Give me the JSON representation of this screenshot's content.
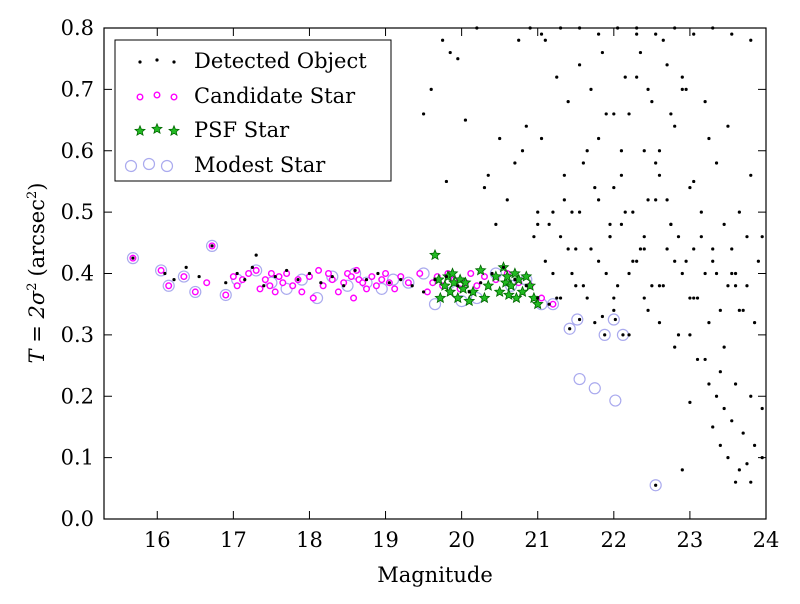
{
  "chart_data": {
    "type": "scatter",
    "title": "",
    "xlabel": "Magnitude",
    "ylabel_main": "T = 2σ",
    "ylabel_sup1": "2",
    "ylabel_paren": "(arcsec",
    "ylabel_sup2": "2",
    "ylabel_close": ")",
    "xlim": [
      15.3,
      24
    ],
    "ylim": [
      0,
      0.8
    ],
    "xticks": [
      16,
      17,
      18,
      19,
      20,
      21,
      22,
      23,
      24
    ],
    "xtick_labels": [
      "16",
      "17",
      "18",
      "19",
      "20",
      "21",
      "22",
      "23",
      "24"
    ],
    "yticks": [
      0,
      0.1,
      0.2,
      0.3,
      0.4,
      0.5,
      0.6,
      0.7,
      0.8
    ],
    "ytick_labels": [
      "0.0",
      "0.1",
      "0.2",
      "0.3",
      "0.4",
      "0.5",
      "0.6",
      "0.7",
      "0.8"
    ],
    "grid": false,
    "legend_position": "top-left",
    "legend": [
      {
        "label": "Detected Object",
        "marker": "dot",
        "color": "#000000"
      },
      {
        "label": "Candidate Star",
        "marker": "circle",
        "color": "#ff00ff"
      },
      {
        "label": "PSF Star",
        "marker": "star",
        "color": "#00cc00"
      },
      {
        "label": "Modest Star",
        "marker": "open-circle",
        "color": "#9999ee"
      }
    ],
    "series": [
      {
        "name": "Detected Object",
        "x": [
          15.68,
          16.72,
          17.3,
          16.1,
          16.22,
          16.38,
          16.55,
          16.9,
          17.05,
          17.15,
          17.25,
          17.4,
          17.55,
          17.7,
          17.85,
          18.0,
          18.15,
          18.3,
          18.45,
          18.6,
          18.75,
          18.9,
          19.05,
          19.2,
          19.35,
          19.5,
          19.65,
          19.8,
          19.95,
          20.1,
          20.25,
          20.4,
          20.55,
          20.7,
          20.85,
          21.0,
          21.15,
          21.3,
          21.42,
          21.55,
          21.75,
          21.88,
          22.02,
          22.12,
          22.55,
          19.5,
          19.6,
          19.75,
          19.85,
          19.95,
          20.35,
          20.5,
          20.7,
          20.85,
          21.0,
          21.1,
          21.25,
          21.4,
          21.55,
          21.7,
          21.85,
          22.0,
          22.15,
          22.3,
          22.45,
          22.6,
          22.75,
          22.9,
          23.05,
          23.2,
          23.35,
          23.5,
          23.65,
          23.8,
          23.95,
          19.8,
          20.05,
          20.3,
          20.45,
          20.6,
          20.8,
          20.95,
          21.05,
          21.2,
          21.35,
          21.5,
          21.65,
          21.8,
          21.95,
          22.1,
          22.25,
          22.4,
          22.55,
          22.7,
          22.85,
          23.0,
          23.15,
          23.3,
          23.45,
          23.6,
          23.75,
          23.9,
          21.1,
          21.3,
          21.5,
          21.7,
          21.9,
          22.1,
          22.3,
          22.5,
          22.7,
          22.9,
          23.1,
          23.3,
          23.5,
          23.7,
          21.2,
          21.4,
          21.6,
          21.8,
          22.0,
          22.2,
          22.4,
          22.6,
          22.8,
          23.0,
          23.2,
          23.4,
          23.6,
          23.85,
          21.25,
          21.45,
          21.65,
          21.85,
          22.05,
          22.25,
          22.45,
          22.65,
          22.85,
          23.05,
          23.25,
          23.45,
          23.65,
          21.15,
          21.35,
          21.55,
          21.75,
          21.95,
          22.15,
          22.35,
          22.55,
          22.75,
          22.95,
          23.15,
          23.35,
          23.55,
          23.75,
          22.0,
          22.2,
          22.4,
          22.6,
          22.8,
          23.0,
          23.2,
          23.4,
          23.6,
          23.8,
          23.95,
          23.1,
          23.25,
          23.35,
          23.45,
          23.55,
          23.7,
          23.85,
          23.0,
          23.3,
          23.5,
          23.65,
          23.8,
          23.95,
          22.9,
          23.4,
          23.6,
          23.75,
          21.6,
          21.8,
          22.0,
          22.2,
          22.4,
          22.6,
          22.8,
          22.3,
          22.5,
          22.7,
          22.1,
          22.9,
          21.9,
          22.35,
          22.65,
          22.95,
          23.25,
          21.0,
          21.45,
          21.95,
          22.45,
          22.75,
          23.05,
          23.55,
          20.2,
          20.75,
          20.9,
          21.05,
          21.3,
          21.55,
          21.8,
          22.05,
          22.3,
          22.55,
          22.8,
          23.05,
          23.3,
          23.55,
          23.8
        ],
        "y": [
          0.425,
          0.445,
          0.43,
          0.4,
          0.39,
          0.41,
          0.395,
          0.385,
          0.4,
          0.39,
          0.41,
          0.38,
          0.395,
          0.405,
          0.39,
          0.4,
          0.385,
          0.395,
          0.38,
          0.405,
          0.39,
          0.4,
          0.385,
          0.39,
          0.38,
          0.37,
          0.39,
          0.395,
          0.38,
          0.37,
          0.385,
          0.4,
          0.41,
          0.39,
          0.38,
          0.36,
          0.35,
          0.36,
          0.31,
          0.325,
          0.32,
          0.3,
          0.325,
          0.3,
          0.055,
          0.66,
          0.7,
          0.78,
          0.76,
          0.75,
          0.56,
          0.62,
          0.58,
          0.64,
          0.5,
          0.78,
          0.72,
          0.68,
          0.74,
          0.7,
          0.76,
          0.66,
          0.72,
          0.79,
          0.7,
          0.6,
          0.66,
          0.72,
          0.55,
          0.68,
          0.58,
          0.64,
          0.5,
          0.56,
          0.46,
          0.55,
          0.65,
          0.54,
          0.48,
          0.52,
          0.6,
          0.46,
          0.62,
          0.5,
          0.56,
          0.44,
          0.6,
          0.52,
          0.48,
          0.56,
          0.5,
          0.44,
          0.58,
          0.52,
          0.46,
          0.54,
          0.5,
          0.44,
          0.48,
          0.4,
          0.46,
          0.42,
          0.42,
          0.46,
          0.38,
          0.44,
          0.4,
          0.48,
          0.42,
          0.38,
          0.44,
          0.4,
          0.36,
          0.42,
          0.38,
          0.34,
          0.4,
          0.44,
          0.38,
          0.42,
          0.36,
          0.4,
          0.46,
          0.38,
          0.42,
          0.36,
          0.4,
          0.34,
          0.38,
          0.32,
          0.36,
          0.4,
          0.36,
          0.33,
          0.38,
          0.42,
          0.34,
          0.38,
          0.3,
          0.36,
          0.32,
          0.28,
          0.34,
          0.48,
          0.52,
          0.5,
          0.54,
          0.46,
          0.5,
          0.44,
          0.52,
          0.48,
          0.42,
          0.46,
          0.4,
          0.44,
          0.38,
          0.34,
          0.3,
          0.36,
          0.32,
          0.28,
          0.3,
          0.26,
          0.24,
          0.22,
          0.2,
          0.18,
          0.26,
          0.22,
          0.2,
          0.18,
          0.16,
          0.14,
          0.12,
          0.19,
          0.15,
          0.1,
          0.08,
          0.06,
          0.1,
          0.08,
          0.12,
          0.06,
          0.09,
          0.58,
          0.62,
          0.54,
          0.66,
          0.6,
          0.56,
          0.64,
          0.72,
          0.68,
          0.74,
          0.6,
          0.7,
          0.66,
          0.76,
          0.78,
          0.7,
          0.62,
          0.48,
          0.5,
          0.46,
          0.52,
          0.48,
          0.44,
          0.4,
          0.8,
          0.78,
          0.8,
          0.79,
          0.8,
          0.8,
          0.79,
          0.8,
          0.8,
          0.79,
          0.8,
          0.79,
          0.8,
          0.79,
          0.78
        ]
      },
      {
        "name": "Candidate Star",
        "x": [
          15.68,
          16.05,
          16.15,
          16.35,
          16.5,
          16.65,
          16.72,
          16.9,
          17.0,
          17.05,
          17.12,
          17.2,
          17.3,
          17.35,
          17.42,
          17.48,
          17.5,
          17.55,
          17.6,
          17.65,
          17.7,
          17.78,
          17.85,
          17.9,
          18.0,
          18.05,
          18.12,
          18.18,
          18.25,
          18.3,
          18.38,
          18.45,
          18.5,
          18.55,
          18.58,
          18.62,
          18.65,
          18.7,
          18.75,
          18.82,
          18.88,
          18.95,
          19.0,
          19.05,
          19.12,
          19.2,
          19.3,
          19.45,
          19.55,
          19.62,
          19.68,
          19.75,
          19.82,
          19.9,
          19.98,
          20.05,
          20.12,
          20.2,
          20.3,
          20.45,
          20.6,
          20.75,
          20.9,
          21.05,
          21.2
        ],
        "y": [
          0.425,
          0.405,
          0.38,
          0.395,
          0.37,
          0.385,
          0.445,
          0.365,
          0.395,
          0.38,
          0.39,
          0.4,
          0.405,
          0.375,
          0.39,
          0.38,
          0.4,
          0.37,
          0.395,
          0.385,
          0.4,
          0.38,
          0.39,
          0.37,
          0.395,
          0.36,
          0.405,
          0.38,
          0.4,
          0.39,
          0.37,
          0.385,
          0.4,
          0.395,
          0.36,
          0.405,
          0.39,
          0.385,
          0.375,
          0.395,
          0.38,
          0.39,
          0.4,
          0.385,
          0.375,
          0.395,
          0.385,
          0.4,
          0.37,
          0.385,
          0.395,
          0.38,
          0.4,
          0.39,
          0.375,
          0.385,
          0.4,
          0.38,
          0.395,
          0.39,
          0.4,
          0.385,
          0.38,
          0.36,
          0.35
        ]
      },
      {
        "name": "PSF Star",
        "x": [
          19.65,
          19.7,
          19.72,
          19.78,
          19.82,
          19.85,
          19.88,
          19.9,
          19.95,
          19.98,
          20.02,
          20.05,
          20.1,
          20.15,
          20.25,
          20.3,
          20.35,
          20.45,
          20.5,
          20.55,
          20.58,
          20.6,
          20.62,
          20.65,
          20.7,
          20.72,
          20.75,
          20.8,
          20.85,
          20.9,
          20.95,
          21.0
        ],
        "y": [
          0.43,
          0.39,
          0.36,
          0.38,
          0.395,
          0.37,
          0.4,
          0.385,
          0.36,
          0.39,
          0.375,
          0.385,
          0.355,
          0.37,
          0.405,
          0.36,
          0.38,
          0.395,
          0.37,
          0.41,
          0.385,
          0.395,
          0.365,
          0.38,
          0.4,
          0.36,
          0.39,
          0.37,
          0.395,
          0.38,
          0.36,
          0.35
        ]
      },
      {
        "name": "Modest Star",
        "x": [
          15.68,
          16.05,
          16.15,
          16.35,
          16.5,
          16.72,
          16.9,
          17.05,
          17.3,
          17.5,
          17.7,
          17.9,
          18.1,
          18.3,
          18.5,
          18.6,
          18.75,
          18.95,
          19.1,
          19.3,
          19.5,
          19.65,
          19.85,
          20.0,
          20.2,
          20.45,
          20.65,
          20.85,
          21.05,
          21.2,
          21.42,
          21.52,
          21.55,
          21.75,
          21.88,
          22.0,
          22.02,
          22.12,
          22.55
        ],
        "y": [
          0.425,
          0.405,
          0.38,
          0.395,
          0.37,
          0.445,
          0.365,
          0.39,
          0.405,
          0.385,
          0.375,
          0.39,
          0.36,
          0.395,
          0.38,
          0.4,
          0.385,
          0.375,
          0.39,
          0.385,
          0.4,
          0.35,
          0.385,
          0.355,
          0.36,
          0.4,
          0.38,
          0.39,
          0.35,
          0.35,
          0.31,
          0.325,
          0.228,
          0.213,
          0.3,
          0.325,
          0.193,
          0.3,
          0.055
        ]
      }
    ]
  }
}
